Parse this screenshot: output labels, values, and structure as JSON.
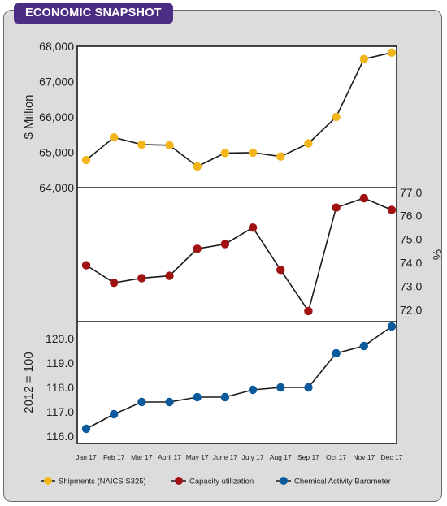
{
  "header": {
    "title": "ECONOMIC SNAPSHOT"
  },
  "chart_data": {
    "type": "line",
    "categories": [
      "Jan 17",
      "Feb 17",
      "Mar 17",
      "April 17",
      "May 17",
      "June 17",
      "July 17",
      "Aug 17",
      "Sep 17",
      "Oct 17",
      "Nov 17",
      "Dec 17"
    ],
    "series": [
      {
        "name": "Shipments (NAICS S325)",
        "values": [
          64780,
          65420,
          65220,
          65200,
          64600,
          64980,
          64990,
          64880,
          65250,
          66000,
          67640,
          67820
        ],
        "color": "#f2b51b",
        "ylabel": "$ Million",
        "ylim": [
          64000,
          68000
        ],
        "yticks": [
          "64,000",
          "65,000",
          "66,000",
          "67,000",
          "68,000"
        ],
        "ytick_values": [
          64000,
          65000,
          66000,
          67000,
          68000
        ]
      },
      {
        "name": "Capacity utilization",
        "values": [
          73.9,
          73.15,
          73.35,
          73.45,
          74.6,
          74.8,
          75.5,
          73.7,
          71.95,
          76.35,
          76.75,
          76.25
        ],
        "color": "#a01212",
        "ylabel": "%",
        "ylim": [
          71.5,
          77.2
        ],
        "yticks": [
          "72.0",
          "73.0",
          "74.0",
          "75.0",
          "76.0",
          "77.0"
        ],
        "ytick_values": [
          72,
          73,
          74,
          75,
          76,
          77
        ]
      },
      {
        "name": "Chemical Activity Barometer",
        "values": [
          116.3,
          116.9,
          117.4,
          117.4,
          117.6,
          117.6,
          117.9,
          118.0,
          118.0,
          119.4,
          119.7,
          120.5
        ],
        "color": "#0a5a9c",
        "ylabel": "2012 = 100",
        "ylim": [
          115.7,
          120.7
        ],
        "yticks": [
          "116.0",
          "117.0",
          "118.0",
          "119.0",
          "120.0"
        ],
        "ytick_values": [
          116,
          117,
          118,
          119,
          120
        ]
      }
    ],
    "grid": false,
    "legend": "bottom"
  }
}
